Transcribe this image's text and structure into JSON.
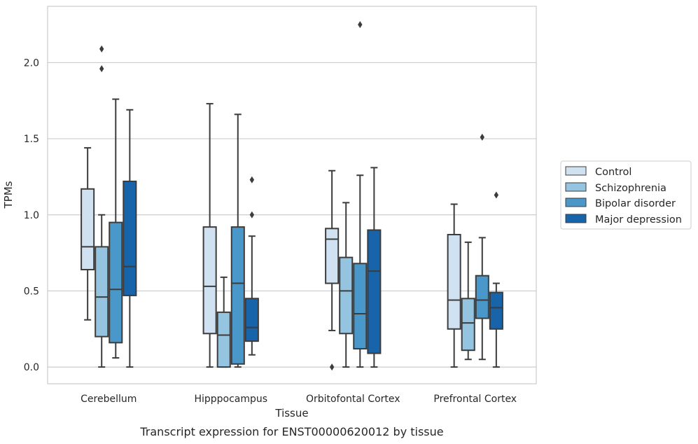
{
  "chart_data": {
    "type": "box",
    "xlabel": "Tissue",
    "ylabel": "TPMs",
    "caption": "Transcript expression for ENST00000620012 by tissue",
    "ylim": [
      -0.11,
      2.37
    ],
    "yticks": [
      "0.0",
      "0.5",
      "1.0",
      "1.5",
      "2.0"
    ],
    "grid": "horizontal",
    "legend_position": "right",
    "categories": [
      "Cerebellum",
      "Hipppocampus",
      "Orbitofontal Cortex",
      "Prefrontal Cortex"
    ],
    "series": [
      {
        "name": "Control",
        "color": "#d0e1f2",
        "boxes": [
          {
            "whislo": 0.31,
            "q1": 0.64,
            "med": 0.79,
            "q3": 1.17,
            "whishi": 1.44,
            "fliers": []
          },
          {
            "whislo": 0.0,
            "q1": 0.22,
            "med": 0.53,
            "q3": 0.92,
            "whishi": 1.73,
            "fliers": []
          },
          {
            "whislo": 0.24,
            "q1": 0.55,
            "med": 0.84,
            "q3": 0.91,
            "whishi": 1.29,
            "fliers": [
              0.0
            ]
          },
          {
            "whislo": 0.0,
            "q1": 0.25,
            "med": 0.44,
            "q3": 0.87,
            "whishi": 1.07,
            "fliers": []
          }
        ]
      },
      {
        "name": "Schizophrenia",
        "color": "#94c4df",
        "boxes": [
          {
            "whislo": 0.0,
            "q1": 0.2,
            "med": 0.46,
            "q3": 0.79,
            "whishi": 1.0,
            "fliers": [
              1.96,
              2.09
            ]
          },
          {
            "whislo": 0.0,
            "q1": 0.0,
            "med": 0.21,
            "q3": 0.36,
            "whishi": 0.59,
            "fliers": []
          },
          {
            "whislo": 0.0,
            "q1": 0.22,
            "med": 0.5,
            "q3": 0.72,
            "whishi": 1.08,
            "fliers": []
          },
          {
            "whislo": 0.05,
            "q1": 0.11,
            "med": 0.29,
            "q3": 0.45,
            "whishi": 0.82,
            "fliers": []
          }
        ]
      },
      {
        "name": "Bipolar disorder",
        "color": "#4a98c9",
        "boxes": [
          {
            "whislo": 0.06,
            "q1": 0.16,
            "med": 0.51,
            "q3": 0.95,
            "whishi": 1.76,
            "fliers": []
          },
          {
            "whislo": 0.0,
            "q1": 0.02,
            "med": 0.55,
            "q3": 0.92,
            "whishi": 1.66,
            "fliers": []
          },
          {
            "whislo": 0.0,
            "q1": 0.12,
            "med": 0.35,
            "q3": 0.68,
            "whishi": 1.26,
            "fliers": [
              2.25
            ]
          },
          {
            "whislo": 0.05,
            "q1": 0.32,
            "med": 0.44,
            "q3": 0.6,
            "whishi": 0.85,
            "fliers": [
              1.51
            ]
          }
        ]
      },
      {
        "name": "Major depression",
        "color": "#1764ab",
        "boxes": [
          {
            "whislo": 0.0,
            "q1": 0.47,
            "med": 0.66,
            "q3": 1.22,
            "whishi": 1.69,
            "fliers": []
          },
          {
            "whislo": 0.08,
            "q1": 0.17,
            "med": 0.26,
            "q3": 0.45,
            "whishi": 0.86,
            "fliers": [
              1.0,
              1.23
            ]
          },
          {
            "whislo": 0.0,
            "q1": 0.09,
            "med": 0.63,
            "q3": 0.9,
            "whishi": 1.31,
            "fliers": []
          },
          {
            "whislo": 0.0,
            "q1": 0.25,
            "med": 0.39,
            "q3": 0.49,
            "whishi": 0.55,
            "fliers": [
              1.13
            ]
          }
        ]
      }
    ]
  }
}
